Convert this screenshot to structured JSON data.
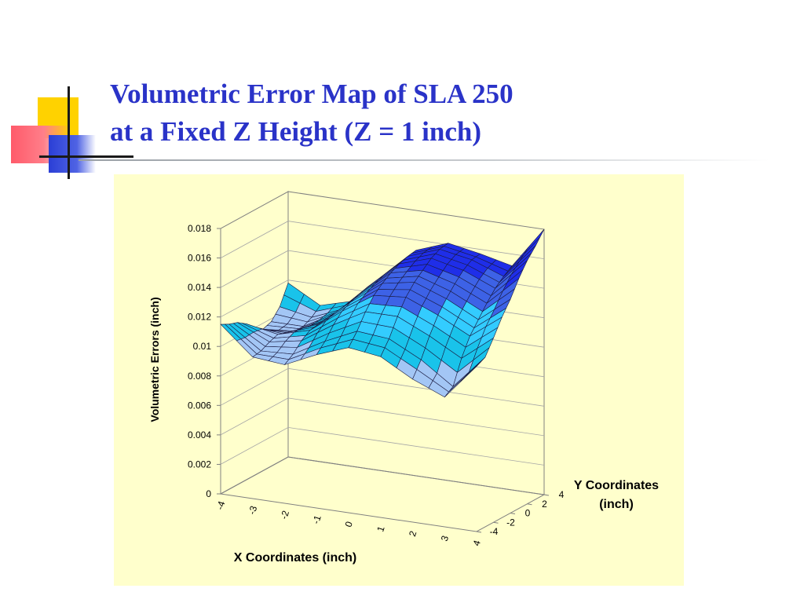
{
  "slide": {
    "title_line1": "Volumetric Error Map of SLA 250",
    "title_line2": "at a Fixed Z Height (Z = 1 inch)"
  },
  "colors": {
    "title": "#2a33c8",
    "chart_background": "#ffffcc",
    "deco_yellow": "#ffd200",
    "deco_red": "#ff5a6a",
    "deco_blue": "#2b3fd6",
    "surface_bands": [
      "#ccf2ff",
      "#a3c6f5",
      "#19c3ea",
      "#33ccff",
      "#3d62e6",
      "#1f2ee8"
    ]
  },
  "chart_data": {
    "type": "surface",
    "title": "",
    "xlabel": "X Coordinates (inch)",
    "ylabel": "Y Coordinates (inch)",
    "zlabel": "Volumetric Errors (inch)",
    "x_ticks": [
      "-4",
      "-3",
      "-2",
      "-1",
      "0",
      "1",
      "2",
      "3",
      "4"
    ],
    "y_ticks": [
      "-4",
      "-2",
      "0",
      "2",
      "4"
    ],
    "z_ticks": [
      "0",
      "0.002",
      "0.004",
      "0.006",
      "0.008",
      "0.01",
      "0.012",
      "0.014",
      "0.016",
      "0.018"
    ],
    "xlim": [
      -4,
      4
    ],
    "ylim": [
      -4,
      4
    ],
    "zlim": [
      0,
      0.018
    ],
    "grid": true,
    "band_edges": [
      0,
      0.009,
      0.0105,
      0.012,
      0.0135,
      0.015,
      0.018
    ],
    "y_values": [
      -4,
      -3,
      -2,
      -1,
      0,
      1,
      2,
      3,
      4
    ],
    "x_values": [
      -4,
      -3,
      -2,
      -1,
      0,
      1,
      2,
      3,
      4
    ],
    "z_values": [
      [
        0.0115,
        0.0096,
        0.0094,
        0.0104,
        0.0112,
        0.0109,
        0.0097,
        0.0088,
        0.0112
      ],
      [
        0.0112,
        0.0097,
        0.0098,
        0.011,
        0.012,
        0.0118,
        0.0107,
        0.0092,
        0.0115
      ],
      [
        0.011,
        0.01,
        0.0104,
        0.0118,
        0.013,
        0.013,
        0.012,
        0.0108,
        0.0125
      ],
      [
        0.0106,
        0.0102,
        0.0108,
        0.0124,
        0.0138,
        0.014,
        0.0131,
        0.012,
        0.0136
      ],
      [
        0.01,
        0.01,
        0.0109,
        0.0127,
        0.0143,
        0.0147,
        0.0139,
        0.0128,
        0.0145
      ],
      [
        0.0096,
        0.0098,
        0.0109,
        0.0129,
        0.0147,
        0.0152,
        0.0146,
        0.0136,
        0.0156
      ],
      [
        0.0098,
        0.0098,
        0.011,
        0.0131,
        0.015,
        0.0157,
        0.0152,
        0.0143,
        0.0165
      ],
      [
        0.0105,
        0.0101,
        0.011,
        0.0132,
        0.0152,
        0.016,
        0.0156,
        0.0148,
        0.0172
      ],
      [
        0.0118,
        0.0106,
        0.0112,
        0.0133,
        0.0153,
        0.0161,
        0.0157,
        0.0152,
        0.018
      ]
    ]
  }
}
